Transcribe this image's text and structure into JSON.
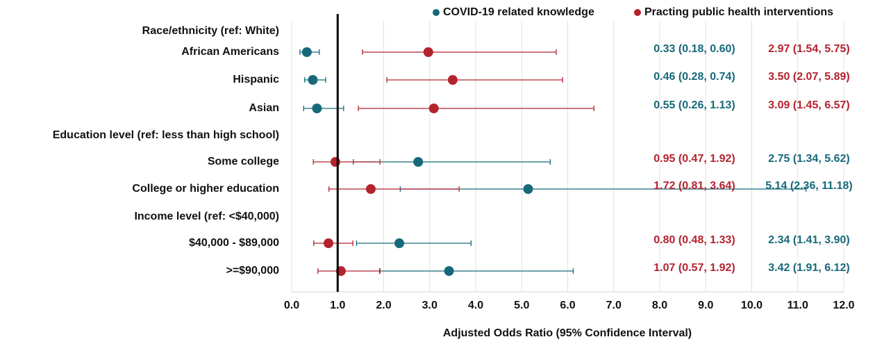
{
  "chart_data": {
    "type": "forest",
    "xlabel": "Adjusted Odds Ratio (95% Confidence Interval)",
    "categories": [
      "Race/ethnicity (ref: White)",
      "African Americans",
      "Hispanic",
      "Asian",
      "Education level (ref: less than high school)",
      "Some college",
      "College or higher education",
      "Income level (ref: <$40,000)",
      "$40,000 - $89,000",
      ">=$90,000"
    ],
    "series": [
      {
        "name": "COVID-19 related knowledge",
        "color": "#17697a",
        "values": [
          null,
          0.33,
          0.46,
          0.55,
          null,
          2.75,
          5.14,
          null,
          2.34,
          3.42
        ],
        "lower": [
          null,
          0.18,
          0.28,
          0.26,
          null,
          1.34,
          2.36,
          null,
          1.41,
          1.91
        ],
        "upper": [
          null,
          0.6,
          0.74,
          1.13,
          null,
          5.62,
          11.18,
          null,
          3.9,
          6.12
        ],
        "value_labels": [
          null,
          "0.33 (0.18, 0.60)",
          "0.46 (0.28, 0.74)",
          "0.55 (0.26, 1.13)",
          null,
          "2.75 (1.34, 5.62)",
          "5.14 (2.36, 11.18)",
          null,
          "2.34 (1.41, 3.90)",
          "3.42 (1.91, 6.12)"
        ]
      },
      {
        "name": "Practing public health interventions",
        "color": "#b3232e",
        "values": [
          null,
          2.97,
          3.5,
          3.09,
          null,
          0.95,
          1.72,
          null,
          0.8,
          1.07
        ],
        "lower": [
          null,
          1.54,
          2.07,
          1.45,
          null,
          0.47,
          0.81,
          null,
          0.48,
          0.57
        ],
        "upper": [
          null,
          5.75,
          5.89,
          6.57,
          null,
          1.92,
          3.64,
          null,
          1.33,
          1.92
        ],
        "value_labels": [
          null,
          "2.97 (1.54, 5.75)",
          "3.50 (2.07, 5.89)",
          "3.09 (1.45, 6.57)",
          null,
          "0.95 (0.47, 1.92)",
          "1.72 (0.81, 3.64)",
          null,
          "0.80 (0.48, 1.33)",
          "1.07 (0.57, 1.92)"
        ]
      }
    ],
    "xlim": [
      0,
      12
    ],
    "xticks": [
      {
        "value": 0,
        "label": "0.0"
      },
      {
        "value": 1,
        "label": "1.0"
      },
      {
        "value": 2,
        "label": "2.0"
      },
      {
        "value": 3,
        "label": "3.0"
      },
      {
        "value": 4,
        "label": "4.0"
      },
      {
        "value": 5,
        "label": "5.0"
      },
      {
        "value": 6,
        "label": "6.0"
      },
      {
        "value": 7,
        "label": "7.0"
      },
      {
        "value": 8,
        "label": "8.0"
      },
      {
        "value": 9,
        "label": "9.0"
      },
      {
        "value": 10,
        "label": "10.0"
      },
      {
        "value": 11,
        "label": "11.0"
      },
      {
        "value": 12,
        "label": "12.0"
      }
    ],
    "reference_line": 1,
    "grid": true,
    "legend": "top"
  }
}
